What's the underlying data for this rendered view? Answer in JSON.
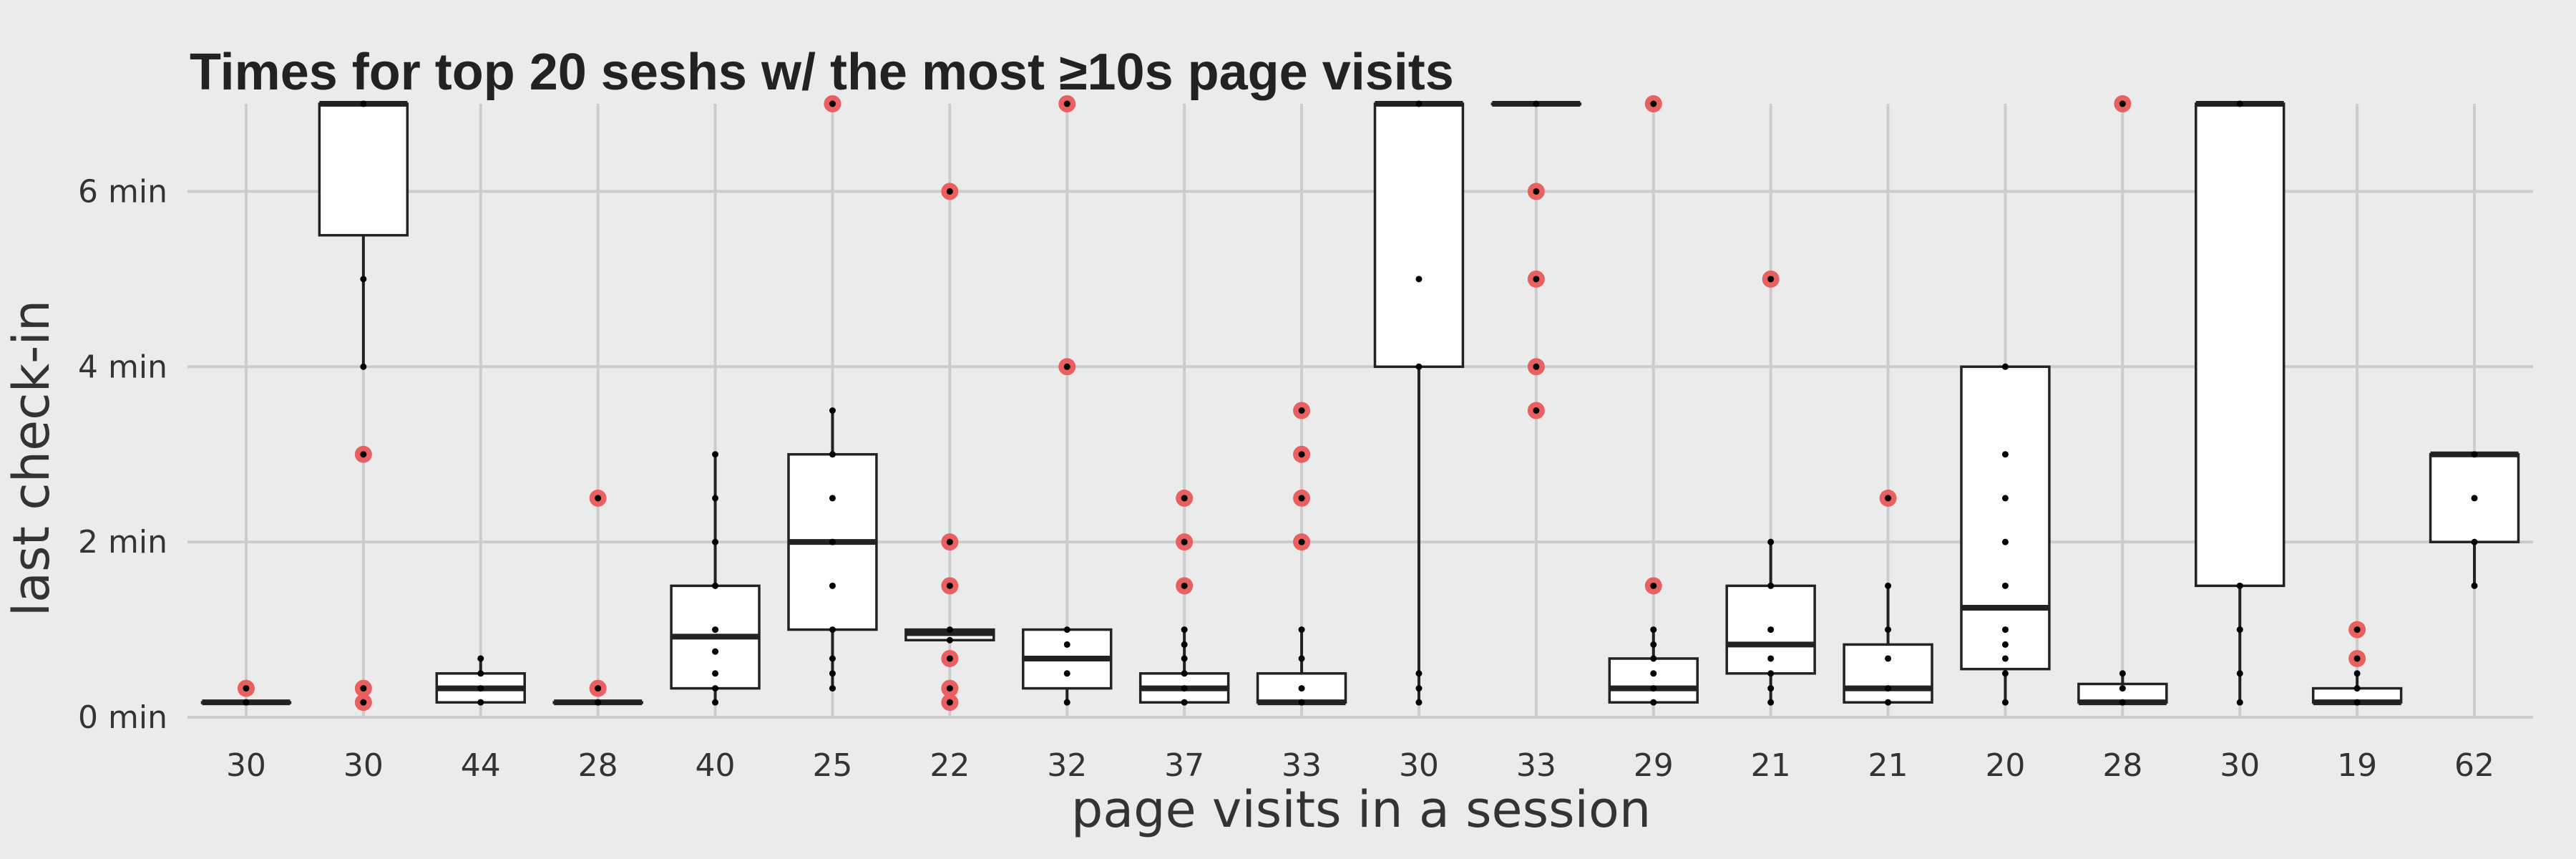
{
  "chart_data": {
    "type": "boxplot",
    "title": "Times for top 20 seshs w/ the most ≥10s page visits",
    "xlabel": "page visits in a session",
    "ylabel": "last check-in",
    "ylim": [
      0,
      7
    ],
    "y_ticks": [
      0,
      2,
      4,
      6
    ],
    "y_tick_labels": [
      "0 min",
      "2 min",
      "4 min",
      "6 min"
    ],
    "grid": true,
    "colors": {
      "background": "#ebebeb",
      "grid": "#cccccc",
      "box_fill": "#ffffff",
      "box_stroke": "#222222",
      "outlier": "#e8605f",
      "point": "#000000"
    },
    "categories": [
      "30",
      "30",
      "44",
      "28",
      "40",
      "25",
      "22",
      "32",
      "37",
      "33",
      "30",
      "33",
      "29",
      "21",
      "21",
      "20",
      "28",
      "30",
      "19",
      "62"
    ],
    "boxes": [
      {
        "q1": 0.17,
        "median": 0.17,
        "q3": 0.17,
        "wlo": 0.17,
        "whi": 0.17,
        "points": [
          0.17
        ],
        "outliers": [
          0.33
        ]
      },
      {
        "q1": 5.5,
        "median": 7,
        "q3": 7,
        "wlo": 4,
        "whi": 7,
        "points": [
          4,
          5,
          7
        ],
        "outliers": [
          3,
          0.33,
          0.17
        ]
      },
      {
        "q1": 0.17,
        "median": 0.33,
        "q3": 0.5,
        "wlo": 0.17,
        "whi": 0.67,
        "points": [
          0.17,
          0.33,
          0.5,
          0.67
        ],
        "outliers": []
      },
      {
        "q1": 0.17,
        "median": 0.17,
        "q3": 0.17,
        "wlo": 0.17,
        "whi": 0.17,
        "points": [
          0.17
        ],
        "outliers": [
          2.5,
          0.33
        ]
      },
      {
        "q1": 0.33,
        "median": 0.92,
        "q3": 1.5,
        "wlo": 0.17,
        "whi": 3,
        "points": [
          0.17,
          0.33,
          0.5,
          0.75,
          1,
          1.5,
          2,
          2.5,
          3
        ],
        "outliers": []
      },
      {
        "q1": 1,
        "median": 2,
        "q3": 3,
        "wlo": 0.33,
        "whi": 3.5,
        "points": [
          0.33,
          0.5,
          0.67,
          1,
          1.5,
          2,
          2.5,
          3,
          3.5
        ],
        "outliers": [
          7
        ]
      },
      {
        "q1": 0.88,
        "median": 0.96,
        "q3": 1,
        "wlo": 0.88,
        "whi": 1,
        "points": [
          0.88,
          1
        ],
        "outliers": [
          6,
          2,
          1.5,
          0.67,
          0.33,
          0.17
        ]
      },
      {
        "q1": 0.33,
        "median": 0.67,
        "q3": 1,
        "wlo": 0.17,
        "whi": 1,
        "points": [
          0.17,
          0.5,
          0.83,
          1
        ],
        "outliers": [
          7,
          4
        ]
      },
      {
        "q1": 0.17,
        "median": 0.33,
        "q3": 0.5,
        "wlo": 0.17,
        "whi": 1,
        "points": [
          0.17,
          0.33,
          0.5,
          0.67,
          0.83,
          1
        ],
        "outliers": [
          2.5,
          2,
          1.5
        ]
      },
      {
        "q1": 0.17,
        "median": 0.17,
        "q3": 0.5,
        "wlo": 0.17,
        "whi": 1,
        "points": [
          0.17,
          0.33,
          0.67,
          1
        ],
        "outliers": [
          3.5,
          3,
          2.5,
          2
        ]
      },
      {
        "q1": 4,
        "median": 7,
        "q3": 7,
        "wlo": 0.17,
        "whi": 7,
        "points": [
          0.17,
          0.33,
          0.5,
          4,
          5,
          7
        ],
        "outliers": []
      },
      {
        "q1": 7,
        "median": 7,
        "q3": 7,
        "wlo": 7,
        "whi": 7,
        "points": [
          7
        ],
        "outliers": [
          6,
          5,
          4,
          3.5
        ]
      },
      {
        "q1": 0.17,
        "median": 0.33,
        "q3": 0.67,
        "wlo": 0.17,
        "whi": 1,
        "points": [
          0.17,
          0.33,
          0.5,
          0.67,
          0.83,
          1
        ],
        "outliers": [
          7,
          1.5
        ]
      },
      {
        "q1": 0.5,
        "median": 0.83,
        "q3": 1.5,
        "wlo": 0.17,
        "whi": 2,
        "points": [
          0.17,
          0.33,
          0.5,
          0.67,
          1,
          1.5,
          2
        ],
        "outliers": [
          5
        ]
      },
      {
        "q1": 0.17,
        "median": 0.33,
        "q3": 0.83,
        "wlo": 0.17,
        "whi": 1.5,
        "points": [
          0.17,
          0.33,
          0.67,
          1,
          1.5
        ],
        "outliers": [
          2.5
        ]
      },
      {
        "q1": 0.55,
        "median": 1.25,
        "q3": 4,
        "wlo": 0.17,
        "whi": 4,
        "points": [
          0.17,
          0.5,
          0.67,
          0.83,
          1,
          1.5,
          2,
          2.5,
          3,
          4
        ],
        "outliers": []
      },
      {
        "q1": 0.17,
        "median": 0.17,
        "q3": 0.38,
        "wlo": 0.17,
        "whi": 0.5,
        "points": [
          0.17,
          0.33,
          0.5
        ],
        "outliers": [
          7
        ]
      },
      {
        "q1": 1.5,
        "median": 7,
        "q3": 7,
        "wlo": 0.17,
        "whi": 7,
        "points": [
          0.17,
          0.5,
          1,
          1.5,
          7
        ],
        "outliers": []
      },
      {
        "q1": 0.17,
        "median": 0.17,
        "q3": 0.33,
        "wlo": 0.17,
        "whi": 0.5,
        "points": [
          0.17,
          0.33,
          0.5
        ],
        "outliers": [
          1,
          0.67
        ]
      },
      {
        "q1": 2,
        "median": 3,
        "q3": 3,
        "wlo": 1.5,
        "whi": 3,
        "points": [
          1.5,
          2,
          2.5,
          3
        ],
        "outliers": []
      }
    ]
  }
}
